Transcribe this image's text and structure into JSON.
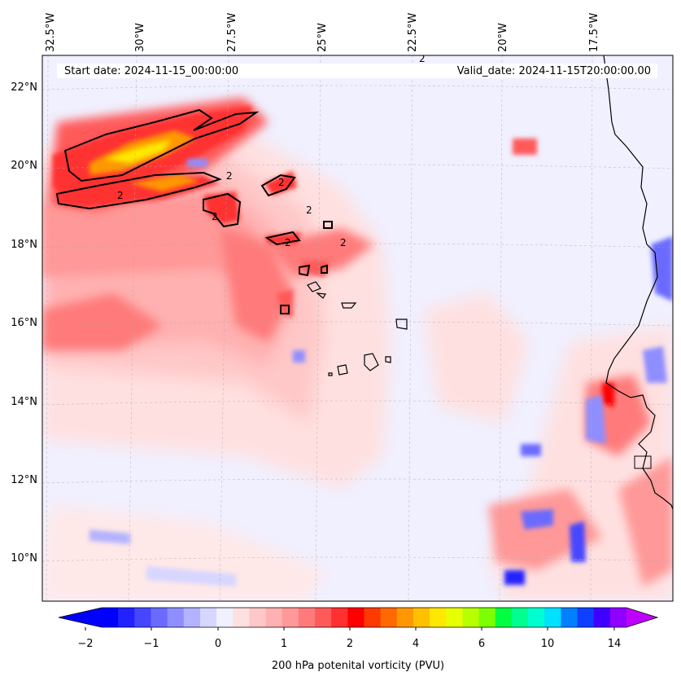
{
  "header": {
    "start_date": "Start date: 2024-11-15_00:00:00",
    "valid_date": "Valid_date: 2024-11-15T20:00:00.00"
  },
  "axes": {
    "lon_labels": [
      "32.5°W",
      "30°W",
      "27.5°W",
      "25°W",
      "22.5°W",
      "20°W",
      "17.5°W"
    ],
    "lat_labels": [
      "22°N",
      "20°N",
      "18°N",
      "16°N",
      "14°N",
      "12°N",
      "10°N"
    ]
  },
  "colorbar": {
    "title": "200 hPa potenital vorticity (PVU)",
    "tick_labels": [
      "−2",
      "−1",
      "0",
      "1",
      "2",
      "4",
      "6",
      "10",
      "14"
    ],
    "colors": [
      "#0000ff",
      "#2222ff",
      "#4646ff",
      "#6a6aff",
      "#8e8eff",
      "#b2b2ff",
      "#d6d6ff",
      "#f0f0ff",
      "#ffe0e0",
      "#ffc8c8",
      "#ffb0b0",
      "#ff9898",
      "#ff7a7a",
      "#ff5a5a",
      "#ff3030",
      "#ff0000",
      "#ff3a00",
      "#ff6a00",
      "#ff9800",
      "#ffc000",
      "#ffe800",
      "#e8ff00",
      "#b8ff00",
      "#7cff00",
      "#00ff40",
      "#00ff90",
      "#00ffd0",
      "#00e0ff",
      "#0080ff",
      "#1040ff",
      "#4000ff",
      "#9000ff"
    ],
    "under_color": "#0000ff",
    "over_color": "#c000ff"
  },
  "contour_labels": [
    "2",
    "2",
    "2",
    "2",
    "2",
    "2",
    "2",
    "2"
  ]
}
